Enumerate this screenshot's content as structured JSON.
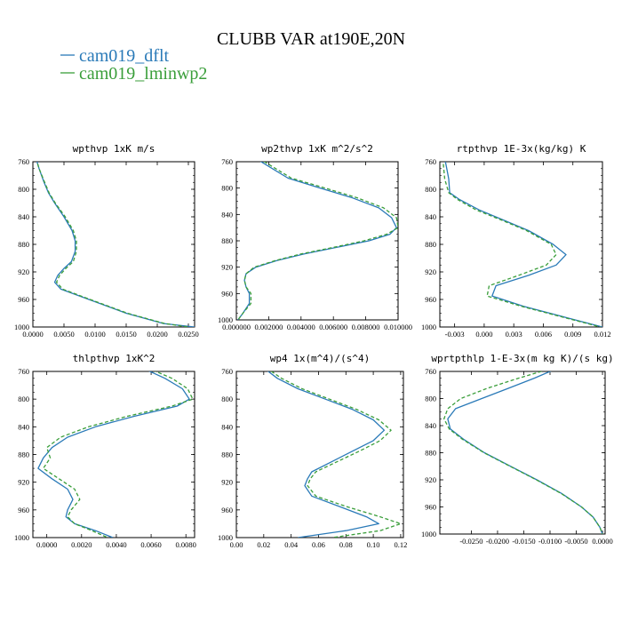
{
  "header": {
    "title": "CLUBB VAR at190E,20N",
    "legend": [
      {
        "label": "cam019_dflt",
        "color": "#2a7ab8",
        "dash": false
      },
      {
        "label": "cam019_lminwp2",
        "color": "#3a9e3a",
        "dash": true
      }
    ]
  },
  "chart_data": [
    {
      "type": "line",
      "title": "wpthvp  1xK m/s",
      "xlim": [
        0,
        0.026
      ],
      "ylim": [
        760,
        1000
      ],
      "y_reversed": true,
      "xticks": [
        "0.0000",
        "0.0050",
        "0.0100",
        "0.0150",
        "0.0200",
        "0.0250"
      ],
      "xtick_values": [
        0,
        0.005,
        0.01,
        0.015,
        0.02,
        0.025
      ],
      "yticks": [
        "760",
        "800",
        "840",
        "880",
        "920",
        "960",
        "1000"
      ],
      "y": [
        755,
        770,
        790,
        805,
        820,
        840,
        860,
        875,
        890,
        905,
        915,
        925,
        935,
        945,
        960,
        980,
        995,
        1000
      ],
      "series": [
        {
          "name": "cam019_dflt",
          "values": [
            0.0005,
            0.001,
            0.0018,
            0.0025,
            0.0035,
            0.005,
            0.0063,
            0.0068,
            0.0068,
            0.0062,
            0.005,
            0.004,
            0.0035,
            0.0045,
            0.009,
            0.015,
            0.021,
            0.026
          ]
        },
        {
          "name": "cam019_lminwp2",
          "values": [
            0.0005,
            0.001,
            0.0019,
            0.0026,
            0.0036,
            0.0052,
            0.0065,
            0.007,
            0.007,
            0.0065,
            0.0053,
            0.0043,
            0.0038,
            0.0048,
            0.0092,
            0.0152,
            0.0212,
            0.025
          ]
        }
      ]
    },
    {
      "type": "line",
      "title": "wp2thvp  1xK m^2/s^2",
      "xlim": [
        0,
        0.01
      ],
      "ylim": [
        760,
        1000
      ],
      "y_reversed": true,
      "xticks": [
        "0.000000",
        "0.002000",
        "0.004000",
        "0.006000",
        "0.008000",
        "0.010000"
      ],
      "xtick_values": [
        0,
        0.002,
        0.004,
        0.006,
        0.008,
        0.01
      ],
      "yticks": [
        "760",
        "800",
        "840",
        "880",
        "920",
        "960",
        "1000"
      ],
      "y": [
        755,
        770,
        785,
        800,
        815,
        830,
        845,
        860,
        870,
        880,
        890,
        900,
        910,
        920,
        930,
        940,
        950,
        960,
        975,
        990,
        1000
      ],
      "series": [
        {
          "name": "cam019_dflt",
          "values": [
            0.0012,
            0.0022,
            0.0032,
            0.0052,
            0.0072,
            0.0088,
            0.0096,
            0.0099,
            0.0095,
            0.0082,
            0.0062,
            0.0042,
            0.0025,
            0.0012,
            0.0006,
            0.0005,
            0.0006,
            0.0008,
            0.0008,
            0.0004,
            0.0001
          ]
        },
        {
          "name": "cam019_lminwp2",
          "values": [
            0.0014,
            0.0024,
            0.0034,
            0.0055,
            0.0075,
            0.0091,
            0.0099,
            0.01,
            0.0093,
            0.0079,
            0.006,
            0.004,
            0.0024,
            0.0011,
            0.0006,
            0.0005,
            0.0006,
            0.0009,
            0.0009,
            0.0004,
            0.0001
          ]
        }
      ]
    },
    {
      "type": "line",
      "title": "rtpthvp  1E-3x(kg/kg) K",
      "xlim": [
        -0.0045,
        0.012
      ],
      "ylim": [
        760,
        1000
      ],
      "y_reversed": true,
      "xticks": [
        "-0.003",
        "0.000",
        "0.003",
        "0.006",
        "0.009",
        "0.012"
      ],
      "xtick_values": [
        -0.003,
        0,
        0.003,
        0.006,
        0.009,
        0.012
      ],
      "yticks": [
        "760",
        "800",
        "840",
        "880",
        "920",
        "960",
        "1000"
      ],
      "y": [
        755,
        770,
        785,
        805,
        815,
        830,
        845,
        860,
        880,
        895,
        910,
        925,
        940,
        955,
        970,
        985,
        1000
      ],
      "series": [
        {
          "name": "cam019_dflt",
          "values": [
            -0.004,
            -0.0038,
            -0.0036,
            -0.0035,
            -0.0025,
            -0.0005,
            0.002,
            0.0045,
            0.007,
            0.0083,
            0.0073,
            0.0045,
            0.0012,
            0.0008,
            0.004,
            0.008,
            0.012
          ]
        },
        {
          "name": "cam019_lminwp2",
          "values": [
            -0.0042,
            -0.0041,
            -0.004,
            -0.0036,
            -0.0027,
            -0.0008,
            0.0018,
            0.0043,
            0.0068,
            0.0073,
            0.0063,
            0.0035,
            0.0005,
            0.0003,
            0.0038,
            0.0078,
            0.0118
          ]
        }
      ]
    },
    {
      "type": "line",
      "title": "thlpthvp  1xK^2",
      "xlim": [
        -0.0008,
        0.0085
      ],
      "ylim": [
        760,
        1000
      ],
      "y_reversed": true,
      "xticks": [
        "0.0000",
        "0.0020",
        "0.0040",
        "0.0060",
        "0.0080"
      ],
      "xtick_values": [
        0,
        0.002,
        0.004,
        0.006,
        0.008
      ],
      "yticks": [
        "760",
        "800",
        "840",
        "880",
        "920",
        "960",
        "1000"
      ],
      "y": [
        755,
        770,
        785,
        800,
        810,
        825,
        840,
        855,
        870,
        885,
        900,
        915,
        930,
        945,
        960,
        970,
        980,
        990,
        1000
      ],
      "series": [
        {
          "name": "cam019_dflt",
          "values": [
            0.0055,
            0.0068,
            0.0078,
            0.0082,
            0.0075,
            0.005,
            0.0028,
            0.0012,
            0.0003,
            -0.0002,
            -0.0005,
            0.0003,
            0.0012,
            0.0015,
            0.0012,
            0.0011,
            0.0016,
            0.0028,
            0.0038
          ]
        },
        {
          "name": "cam019_lminwp2",
          "values": [
            0.0058,
            0.0072,
            0.0081,
            0.0084,
            0.0072,
            0.0046,
            0.0024,
            0.0008,
            0.0,
            0.0002,
            -0.0002,
            0.0007,
            0.0016,
            0.0019,
            0.0014,
            0.0012,
            0.0016,
            0.0026,
            0.0035
          ]
        }
      ]
    },
    {
      "type": "line",
      "title": "wp4  1x(m^4)/(s^4)",
      "xlim": [
        0,
        0.122
      ],
      "ylim": [
        760,
        1000
      ],
      "y_reversed": true,
      "xticks": [
        "0.00",
        "0.02",
        "0.04",
        "0.06",
        "0.08",
        "0.10",
        "0.12"
      ],
      "xtick_values": [
        0,
        0.02,
        0.04,
        0.06,
        0.08,
        0.1,
        0.12
      ],
      "yticks": [
        "760",
        "800",
        "840",
        "880",
        "920",
        "960",
        "1000"
      ],
      "y": [
        755,
        770,
        785,
        800,
        815,
        830,
        845,
        860,
        875,
        890,
        905,
        915,
        925,
        940,
        955,
        970,
        980,
        990,
        1000
      ],
      "series": [
        {
          "name": "cam019_dflt",
          "values": [
            0.02,
            0.03,
            0.045,
            0.065,
            0.085,
            0.1,
            0.108,
            0.1,
            0.085,
            0.07,
            0.055,
            0.052,
            0.05,
            0.055,
            0.075,
            0.095,
            0.104,
            0.08,
            0.045
          ]
        },
        {
          "name": "cam019_lminwp2",
          "values": [
            0.022,
            0.033,
            0.048,
            0.068,
            0.088,
            0.104,
            0.113,
            0.105,
            0.09,
            0.074,
            0.058,
            0.054,
            0.052,
            0.058,
            0.08,
            0.105,
            0.12,
            0.105,
            0.07
          ]
        }
      ]
    },
    {
      "type": "line",
      "title": "wprtpthlp  1-E-3x(m kg K)/(s kg)",
      "xlim": [
        -0.031,
        0.0005
      ],
      "ylim": [
        760,
        1000
      ],
      "y_reversed": true,
      "xticks": [
        "-0.0250",
        "-0.0200",
        "-0.0150",
        "-0.0100",
        "-0.0050",
        "0.0000"
      ],
      "xtick_values": [
        -0.025,
        -0.02,
        -0.015,
        -0.01,
        -0.005,
        0
      ],
      "yticks": [
        "760",
        "800",
        "840",
        "880",
        "920",
        "960",
        "1000"
      ],
      "y": [
        755,
        770,
        785,
        800,
        815,
        830,
        845,
        860,
        880,
        900,
        920,
        940,
        960,
        975,
        990,
        1000
      ],
      "series": [
        {
          "name": "cam019_dflt",
          "values": [
            -0.0085,
            -0.013,
            -0.018,
            -0.023,
            -0.028,
            -0.0295,
            -0.029,
            -0.0265,
            -0.0225,
            -0.0175,
            -0.0125,
            -0.0078,
            -0.004,
            -0.0018,
            -0.0005,
            0.0
          ]
        },
        {
          "name": "cam019_lminwp2",
          "values": [
            -0.0095,
            -0.016,
            -0.022,
            -0.027,
            -0.0295,
            -0.0302,
            -0.0292,
            -0.0267,
            -0.0226,
            -0.0176,
            -0.0126,
            -0.0079,
            -0.004,
            -0.0018,
            -0.0005,
            0.0
          ]
        }
      ]
    }
  ]
}
